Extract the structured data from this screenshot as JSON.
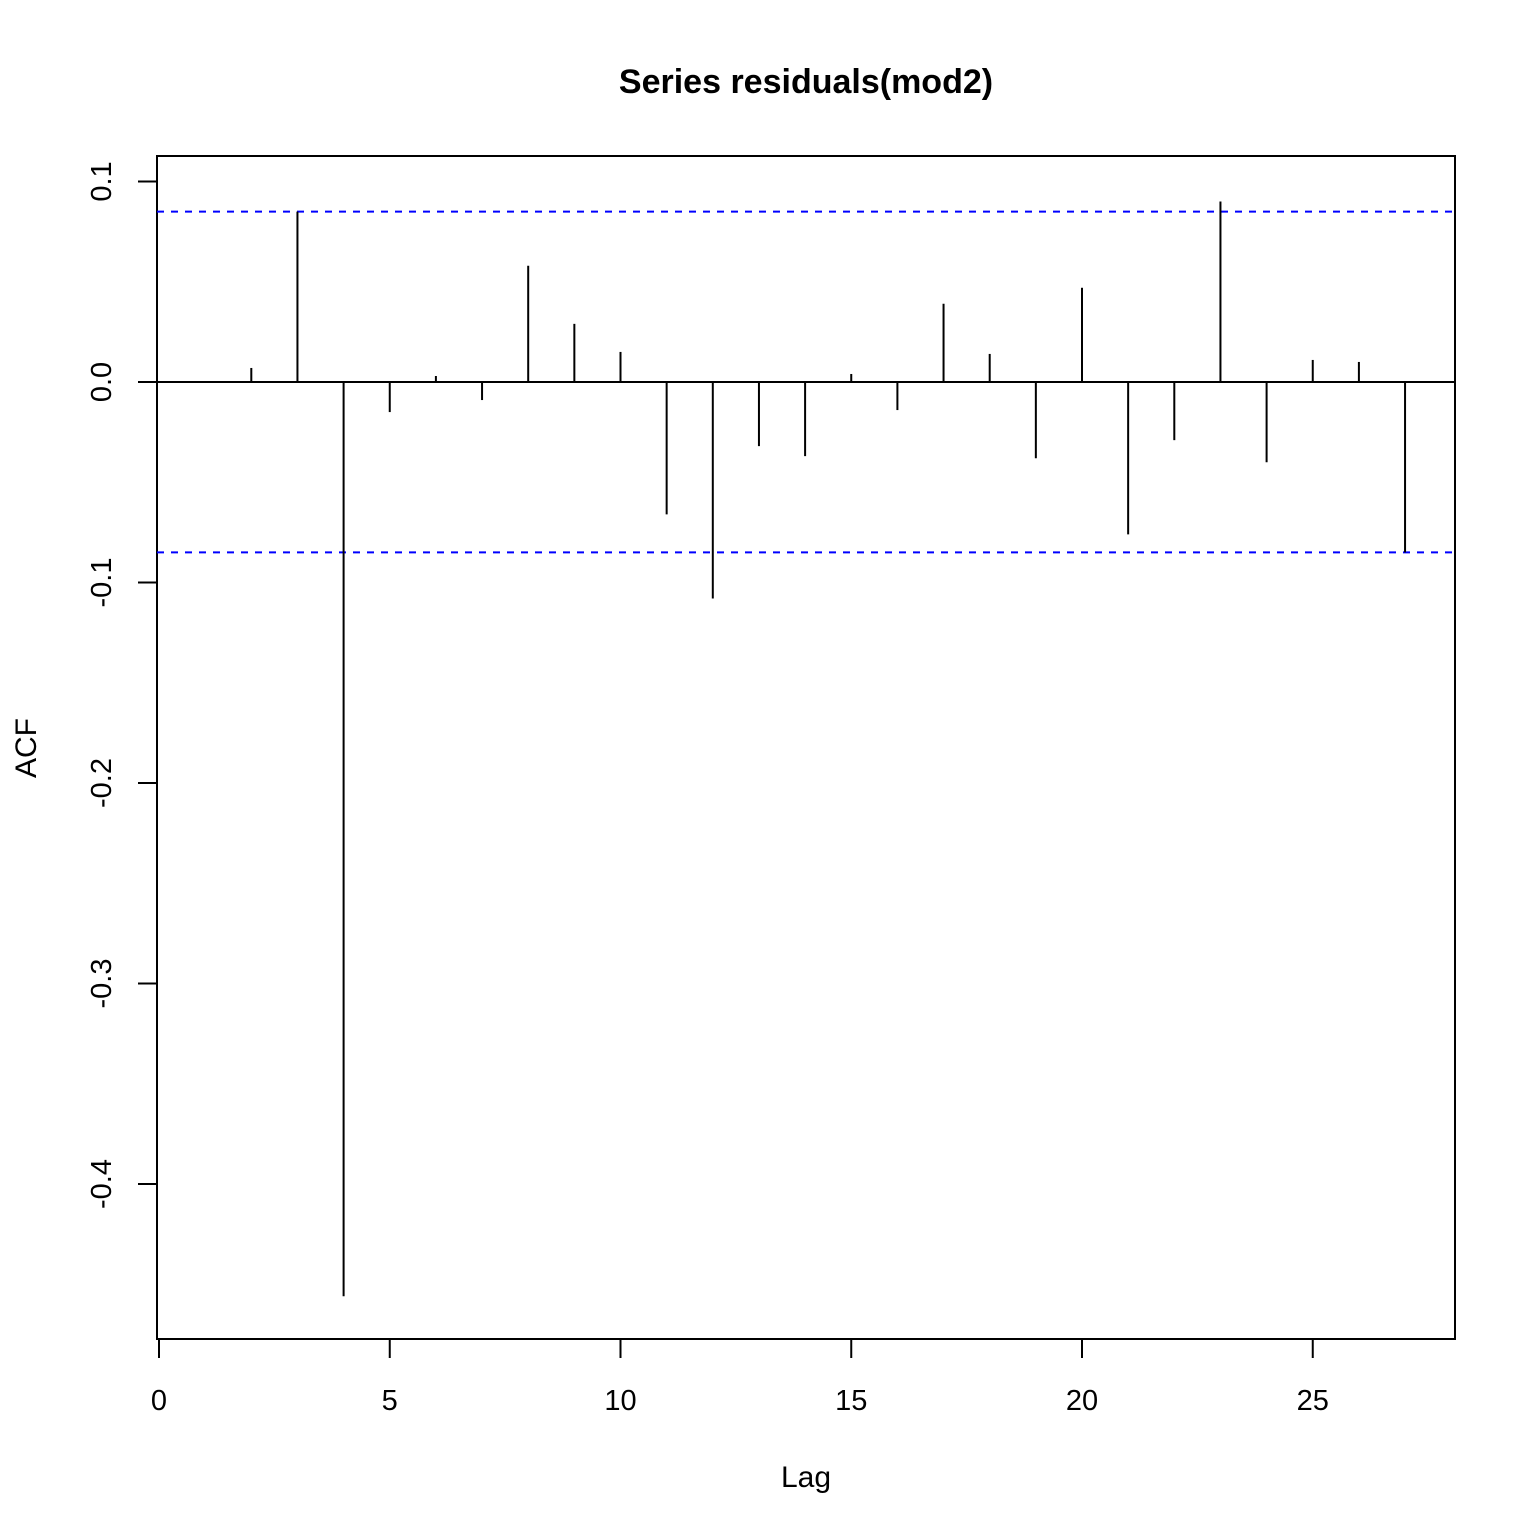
{
  "chart_data": {
    "type": "bar",
    "title": "Series residuals(mod2)",
    "xlabel": "Lag",
    "ylabel": "ACF",
    "xlim": [
      0,
      28
    ],
    "ylim": [
      -0.47,
      0.112
    ],
    "x_ticks": [
      0,
      5,
      10,
      15,
      20,
      25
    ],
    "y_ticks": [
      -0.4,
      -0.3,
      -0.2,
      -0.1,
      0.0,
      0.1
    ],
    "x_tick_labels": [
      "0",
      "5",
      "10",
      "15",
      "20",
      "25"
    ],
    "y_tick_labels": [
      "-0.4",
      "-0.3",
      "-0.2",
      "-0.1",
      "0.0",
      "0.1"
    ],
    "lags": [
      1,
      2,
      3,
      4,
      5,
      6,
      7,
      8,
      9,
      10,
      11,
      12,
      13,
      14,
      15,
      16,
      17,
      18,
      19,
      20,
      21,
      22,
      23,
      24,
      25,
      26,
      27
    ],
    "acf": [
      0.0,
      0.007,
      0.085,
      -0.456,
      -0.015,
      0.003,
      -0.009,
      0.058,
      0.029,
      0.015,
      -0.066,
      -0.108,
      -0.032,
      -0.037,
      0.004,
      -0.014,
      0.039,
      0.014,
      -0.038,
      0.047,
      -0.076,
      -0.029,
      0.09,
      -0.04,
      0.011,
      0.01,
      -0.085
    ],
    "confidence_bounds": [
      0.085,
      -0.085
    ],
    "confidence_line_color": "#0000ff",
    "grid": false
  }
}
